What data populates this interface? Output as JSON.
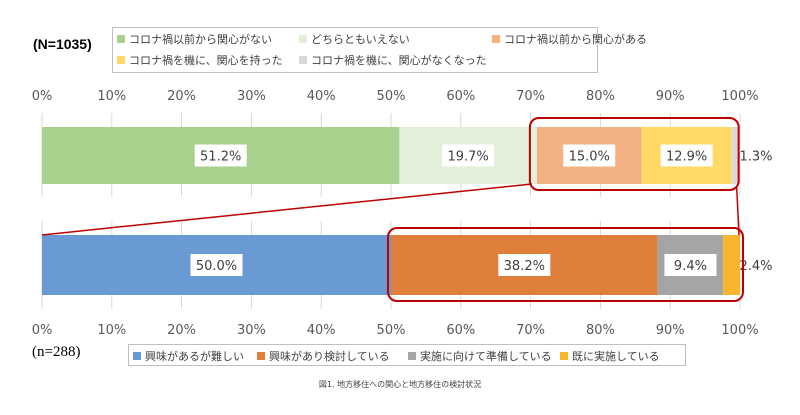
{
  "chart_data": [
    {
      "type": "bar",
      "orientation": "horizontal",
      "stacked": true,
      "sample_label": "(N=1035)",
      "xlim": [
        0,
        100
      ],
      "x_tick_labels": [
        "0%",
        "10%",
        "20%",
        "30%",
        "40%",
        "50%",
        "60%",
        "70%",
        "80%",
        "90%",
        "100%"
      ],
      "x_tick_position": "top",
      "legend_position": "top",
      "series": [
        {
          "name": "コロナ禍以前から関心がない",
          "value": 51.2,
          "label": "51.2%",
          "color": "#a9d18e"
        },
        {
          "name": "どちらともいえない",
          "value": 19.7,
          "label": "19.7%",
          "color": "#e2f0d9"
        },
        {
          "name": "コロナ禍以前から関心がある",
          "value": 15.0,
          "label": "15.0%",
          "color": "#f4b183"
        },
        {
          "name": "コロナ禍を機に、関心を持った",
          "value": 12.9,
          "label": "12.9%",
          "color": "#ffd966"
        },
        {
          "name": "コロナ禍を機に、関心がなくなった",
          "value": 1.3,
          "label": "1.3%",
          "color": "#d9d9d9"
        }
      ]
    },
    {
      "type": "bar",
      "orientation": "horizontal",
      "stacked": true,
      "sample_label": "(n=288)",
      "xlim": [
        0,
        100
      ],
      "x_tick_labels": [
        "0%",
        "10%",
        "20%",
        "30%",
        "40%",
        "50%",
        "60%",
        "70%",
        "80%",
        "90%",
        "100%"
      ],
      "x_tick_position": "bottom",
      "legend_position": "bottom",
      "series": [
        {
          "name": "興味があるが難しい",
          "value": 50.0,
          "label": "50.0%",
          "color": "#6a9ad3"
        },
        {
          "name": "興味があり検討している",
          "value": 38.2,
          "label": "38.2%",
          "color": "#e07f3b"
        },
        {
          "name": "実施に向けて準備している",
          "value": 9.4,
          "label": "9.4%",
          "color": "#a5a5a5"
        },
        {
          "name": "既に実施している",
          "value": 2.4,
          "label": "2.4%",
          "color": "#f8b62d"
        }
      ]
    }
  ],
  "highlight_color": "#c00000",
  "caption": "図1. 地方移住への関心と地方移住の検討状況"
}
